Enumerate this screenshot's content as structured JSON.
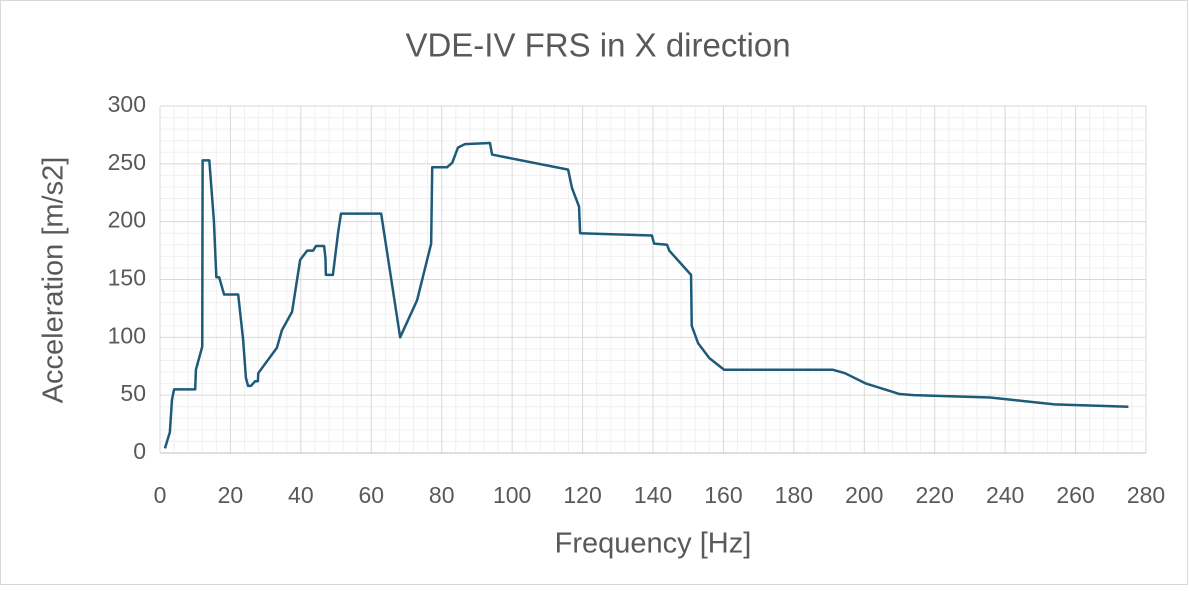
{
  "chart_data": {
    "type": "line",
    "title": "VDE-IV FRS in X direction",
    "x_label": "Frequency [Hz]",
    "y_label": "Acceleration [m/s2]",
    "xlim": [
      0,
      280
    ],
    "xticks": [
      0,
      20,
      40,
      60,
      80,
      100,
      120,
      140,
      160,
      180,
      200,
      220,
      240,
      260,
      280
    ],
    "ylim": [
      0,
      300
    ],
    "yticks": [
      0,
      50,
      100,
      150,
      200,
      250,
      300
    ],
    "grid": true,
    "series": [
      {
        "name": "VDE-IV FRS",
        "color": "#1d5b79",
        "x": [
          1.4,
          2.8,
          3.4,
          4,
          10,
          10.2,
          12,
          12.1,
          14,
          15.3,
          16,
          16.8,
          18.2,
          22.2,
          23.6,
          24.4,
          25,
          25.8,
          27,
          27.8,
          27.9,
          33.2,
          34.6,
          37.5,
          39.8,
          41.8,
          43.5,
          44.3,
          46.6,
          47,
          47.1,
          49.1,
          50.6,
          51.4,
          62.8,
          68.2,
          73,
          77,
          77.3,
          81.5,
          83,
          84.6,
          86.6,
          93.7,
          94.3,
          115.9,
          117,
          119,
          119.3,
          139.7,
          140.3,
          144,
          144.6,
          150.8,
          151,
          152.8,
          156,
          160.2,
          191,
          194.5,
          200.5,
          210,
          214,
          235.7,
          254,
          275
        ],
        "values": [
          4,
          18,
          46,
          55,
          55,
          72,
          92,
          253,
          253,
          201,
          152,
          152,
          137,
          137,
          98,
          65,
          58,
          58,
          62,
          62,
          69,
          91,
          106,
          122,
          167,
          175,
          175,
          179,
          179,
          168,
          154,
          154,
          191,
          207,
          207,
          100,
          132,
          181,
          247,
          247,
          251,
          264,
          267,
          268,
          258,
          245,
          229,
          213,
          190,
          188,
          181,
          180,
          175,
          154,
          110,
          95,
          82,
          72,
          72,
          69,
          60,
          51,
          50,
          48,
          42,
          40
        ]
      }
    ]
  }
}
